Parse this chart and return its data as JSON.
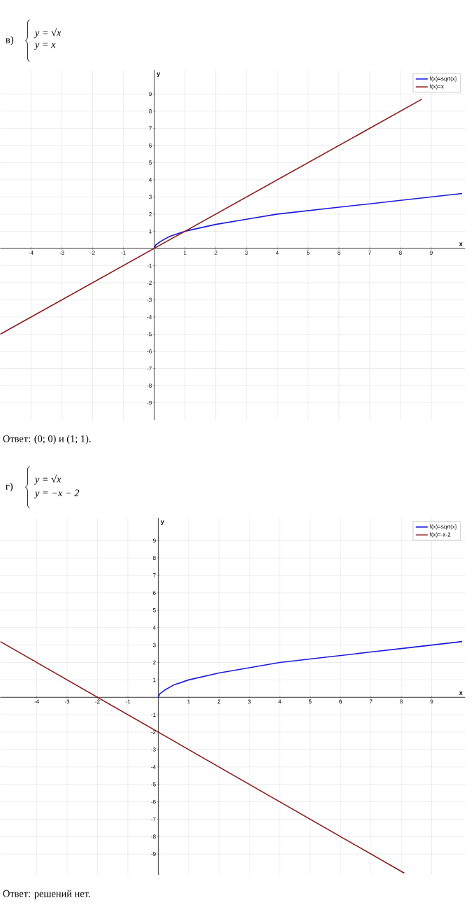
{
  "chart_data": [
    {
      "type": "line",
      "title": "в)",
      "xlabel": "x",
      "ylabel": "y",
      "annotations": [
        "y = √x",
        "y = x",
        "Ответ: (0; 0) и (1; 1)."
      ],
      "xlim": [
        -5,
        10.1
      ],
      "ylim": [
        -10,
        10.4
      ],
      "xticks": [
        -4,
        -3,
        -2,
        -1,
        1,
        2,
        3,
        4,
        5,
        6,
        7,
        8,
        9
      ],
      "yticks": [
        -9,
        -8,
        -7,
        -6,
        -5,
        -4,
        -3,
        -2,
        -1,
        1,
        2,
        3,
        4,
        5,
        6,
        7,
        8,
        9
      ],
      "grid": true,
      "legend": "top right",
      "marker": "none",
      "series": [
        {
          "name": "f(x)=sqrt(x)",
          "color": "#1a1adb",
          "x": [
            0,
            0.05,
            0.2,
            0.5,
            1,
            2,
            3,
            4,
            5,
            6,
            7,
            8,
            9,
            10
          ],
          "values": [
            0,
            0.2,
            0.4,
            0.7,
            1,
            1.4,
            1.7,
            2,
            2.2,
            2.4,
            2.6,
            2.8,
            3,
            3.2
          ]
        },
        {
          "name": "f(x)=x",
          "color": "#8b1a1a",
          "x": [
            -5,
            8.7
          ],
          "values": [
            -5,
            8.7
          ]
        }
      ]
    },
    {
      "type": "line",
      "title": "г)",
      "xlabel": "x",
      "ylabel": "y",
      "annotations": [
        "y = √x",
        "y = −x − 2",
        "Ответ: решений нет."
      ],
      "xlim": [
        -5.2,
        10.1
      ],
      "ylim": [
        -10.2,
        10.3
      ],
      "xticks": [
        -4,
        -3,
        -2,
        -1,
        1,
        2,
        3,
        4,
        5,
        6,
        7,
        8,
        9
      ],
      "yticks": [
        -9,
        -8,
        -7,
        -6,
        -5,
        -4,
        -3,
        -2,
        -1,
        1,
        2,
        3,
        4,
        5,
        6,
        7,
        8,
        9
      ],
      "grid": true,
      "legend": "top right",
      "marker": "none",
      "series": [
        {
          "name": "f(x)=sqrt(x)",
          "color": "#1a1adb",
          "x": [
            0,
            0.05,
            0.2,
            0.5,
            1,
            2,
            3,
            4,
            5,
            6,
            7,
            8,
            9,
            10
          ],
          "values": [
            0,
            0.2,
            0.4,
            0.7,
            1,
            1.4,
            1.7,
            2,
            2.2,
            2.4,
            2.6,
            2.8,
            3,
            3.2
          ]
        },
        {
          "name": "f(x)=-x-2",
          "color": "#8b1a1a",
          "x": [
            -5.2,
            8.1
          ],
          "values": [
            3.2,
            -10.1
          ]
        }
      ]
    }
  ]
}
